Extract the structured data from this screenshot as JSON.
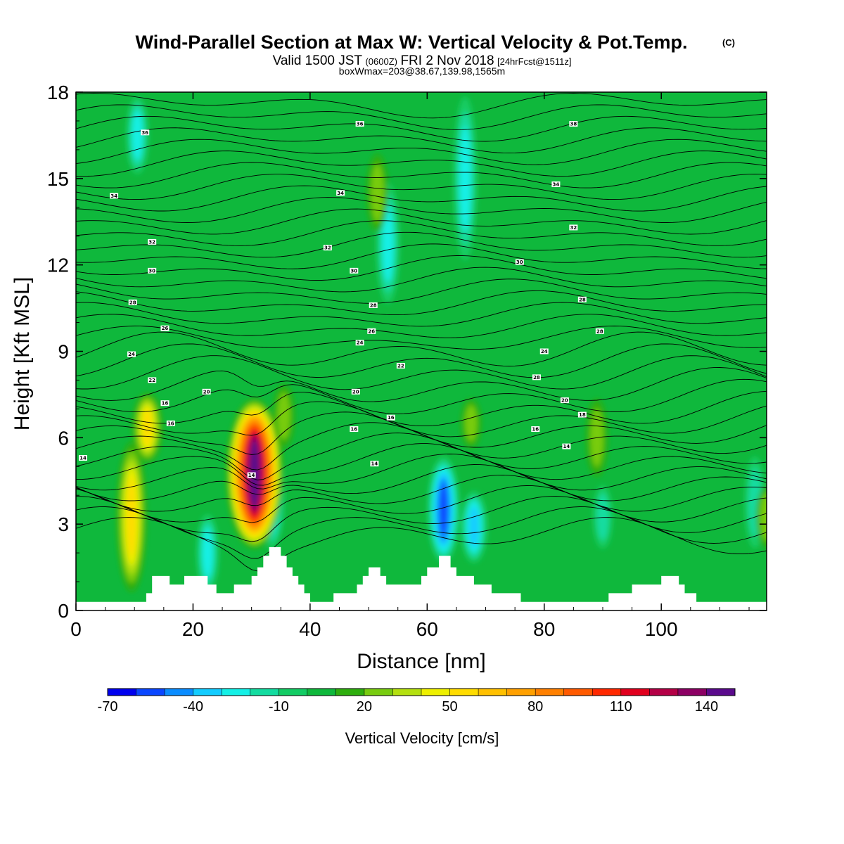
{
  "title": {
    "main": "Wind-Parallel Section at Max W: Vertical Velocity & Pot.Temp.",
    "copyright": "(C)",
    "valid_prefix": "Valid 1500 JST",
    "valid_z": "(0600Z)",
    "valid_date": "FRI 2 Nov 2018",
    "forecast": "[24hrFcst@1511z]",
    "box_info": "boxWmax=203@38.67,139.98,1565m"
  },
  "chart_data": {
    "type": "heatmap",
    "title": "Wind-Parallel Section at Max W: Vertical Velocity & Pot.Temp.",
    "xlabel": "Distance [nm]",
    "ylabel": "Height [Kft MSL]",
    "xlim": [
      0,
      118
    ],
    "ylim": [
      0,
      18
    ],
    "x_ticks": [
      0,
      20,
      40,
      60,
      80,
      100
    ],
    "y_ticks": [
      0,
      3,
      6,
      9,
      12,
      15,
      18
    ],
    "colorbar": {
      "title": "Vertical Velocity [cm/s]",
      "levels": [
        -70,
        -60,
        -50,
        -40,
        -30,
        -20,
        -10,
        0,
        10,
        20,
        30,
        40,
        50,
        60,
        70,
        80,
        90,
        100,
        110,
        120,
        130,
        140,
        150
      ],
      "tick_labels": [
        "-70",
        "-40",
        "-10",
        "20",
        "50",
        "80",
        "110",
        "140"
      ],
      "colors": [
        "#0000ee",
        "#0a46ff",
        "#0a8cff",
        "#13ccff",
        "#14f0e6",
        "#13dca0",
        "#12cc64",
        "#0fb83c",
        "#2eae0e",
        "#78cc10",
        "#b4e010",
        "#eef000",
        "#ffdc00",
        "#ffc000",
        "#ffa000",
        "#ff8000",
        "#ff5a00",
        "#ff2800",
        "#e1001e",
        "#b40046",
        "#8c0064",
        "#5a0a8c"
      ]
    },
    "background_value": 0,
    "updraft_cores": [
      {
        "x": 9.5,
        "ymin": 1.0,
        "ymax": 5.5,
        "w": 55
      },
      {
        "x": 12.2,
        "ymin": 5.5,
        "ymax": 7.2,
        "w": 55
      },
      {
        "x": 30.5,
        "ymin": 2.5,
        "ymax": 7.0,
        "w": 150
      },
      {
        "x": 35.5,
        "ymin": 6.0,
        "ymax": 7.5,
        "w": 25
      },
      {
        "x": 51.5,
        "ymin": 13.5,
        "ymax": 15.5,
        "w": 25
      },
      {
        "x": 67.5,
        "ymin": 6.0,
        "ymax": 7.0,
        "w": 20
      },
      {
        "x": 89.0,
        "ymin": 5.0,
        "ymax": 7.0,
        "w": 25
      },
      {
        "x": 118.0,
        "ymin": 2.5,
        "ymax": 4.0,
        "w": 25
      }
    ],
    "downdraft_cores": [
      {
        "x": 33.5,
        "ymin": 2.5,
        "ymax": 5.5,
        "w": -40
      },
      {
        "x": 62.8,
        "ymin": 2.0,
        "ymax": 5.0,
        "w": -65
      },
      {
        "x": 68.0,
        "ymin": 2.0,
        "ymax": 3.8,
        "w": -45
      },
      {
        "x": 66.5,
        "ymin": 12.5,
        "ymax": 17.5,
        "w": -35
      },
      {
        "x": 53.3,
        "ymin": 11.0,
        "ymax": 14.5,
        "w": -35
      },
      {
        "x": 10.5,
        "ymin": 15.5,
        "ymax": 17.5,
        "w": -30
      },
      {
        "x": 22.5,
        "ymin": 1.0,
        "ymax": 3.0,
        "w": -30
      },
      {
        "x": 90.0,
        "ymin": 2.5,
        "ymax": 4.0,
        "w": -20
      },
      {
        "x": 116.0,
        "ymin": 2.5,
        "ymax": 5.0,
        "w": -25
      }
    ],
    "terrain": [
      [
        0,
        0.3
      ],
      [
        12,
        0.3
      ],
      [
        12,
        0.6
      ],
      [
        13,
        0.6
      ],
      [
        13,
        1.2
      ],
      [
        16,
        1.2
      ],
      [
        16,
        0.9
      ],
      [
        18.5,
        0.9
      ],
      [
        18.5,
        1.2
      ],
      [
        22.5,
        1.2
      ],
      [
        22.5,
        0.9
      ],
      [
        24,
        0.9
      ],
      [
        24,
        0.6
      ],
      [
        27,
        0.6
      ],
      [
        27,
        0.9
      ],
      [
        30,
        0.9
      ],
      [
        30,
        1.2
      ],
      [
        31,
        1.2
      ],
      [
        31,
        1.5
      ],
      [
        32,
        1.5
      ],
      [
        32,
        1.9
      ],
      [
        33,
        1.9
      ],
      [
        33,
        2.2
      ],
      [
        35,
        2.2
      ],
      [
        35,
        1.9
      ],
      [
        36,
        1.9
      ],
      [
        36,
        1.5
      ],
      [
        37,
        1.5
      ],
      [
        37,
        1.2
      ],
      [
        38,
        1.2
      ],
      [
        38,
        0.9
      ],
      [
        39,
        0.9
      ],
      [
        39,
        0.6
      ],
      [
        40,
        0.6
      ],
      [
        40,
        0.3
      ],
      [
        44,
        0.3
      ],
      [
        44,
        0.6
      ],
      [
        48,
        0.6
      ],
      [
        48,
        0.9
      ],
      [
        49,
        0.9
      ],
      [
        49,
        1.2
      ],
      [
        50,
        1.2
      ],
      [
        50,
        1.5
      ],
      [
        52,
        1.5
      ],
      [
        52,
        1.2
      ],
      [
        53,
        1.2
      ],
      [
        53,
        0.9
      ],
      [
        55,
        0.9
      ],
      [
        55,
        0.9
      ],
      [
        59,
        0.9
      ],
      [
        59,
        1.2
      ],
      [
        60,
        1.2
      ],
      [
        60,
        1.5
      ],
      [
        62,
        1.5
      ],
      [
        62,
        1.9
      ],
      [
        64,
        1.9
      ],
      [
        64,
        1.5
      ],
      [
        65,
        1.5
      ],
      [
        65,
        1.2
      ],
      [
        68,
        1.2
      ],
      [
        68,
        0.9
      ],
      [
        71,
        0.9
      ],
      [
        71,
        0.6
      ],
      [
        76,
        0.6
      ],
      [
        76,
        0.3
      ],
      [
        91,
        0.3
      ],
      [
        91,
        0.6
      ],
      [
        95,
        0.6
      ],
      [
        95,
        0.9
      ],
      [
        100,
        0.9
      ],
      [
        100,
        1.2
      ],
      [
        103,
        1.2
      ],
      [
        103,
        0.9
      ],
      [
        104,
        0.9
      ],
      [
        104,
        0.6
      ],
      [
        106,
        0.6
      ],
      [
        106,
        0.3
      ],
      [
        118,
        0.3
      ]
    ],
    "theta_contours": {
      "levels": [
        14,
        16,
        18,
        20,
        22,
        24,
        26,
        28,
        30,
        32,
        34,
        36,
        38
      ],
      "labels": [
        {
          "text": "14",
          "x": 1.2,
          "y": 5.3
        },
        {
          "text": "14",
          "x": 30.0,
          "y": 4.7
        },
        {
          "text": "14",
          "x": 51.0,
          "y": 5.1
        },
        {
          "text": "14",
          "x": 83.8,
          "y": 5.7
        },
        {
          "text": "16",
          "x": 15.2,
          "y": 7.2
        },
        {
          "text": "16",
          "x": 16.2,
          "y": 6.5
        },
        {
          "text": "16",
          "x": 47.5,
          "y": 6.3
        },
        {
          "text": "16",
          "x": 53.8,
          "y": 6.7
        },
        {
          "text": "16",
          "x": 78.5,
          "y": 6.3
        },
        {
          "text": "18",
          "x": 86.5,
          "y": 6.8
        },
        {
          "text": "20",
          "x": 22.3,
          "y": 7.6
        },
        {
          "text": "20",
          "x": 47.8,
          "y": 7.6
        },
        {
          "text": "20",
          "x": 83.5,
          "y": 7.3
        },
        {
          "text": "22",
          "x": 13.0,
          "y": 8.0
        },
        {
          "text": "22",
          "x": 55.5,
          "y": 8.5
        },
        {
          "text": "24",
          "x": 9.5,
          "y": 8.9
        },
        {
          "text": "24",
          "x": 48.5,
          "y": 9.3
        },
        {
          "text": "24",
          "x": 80.0,
          "y": 9.0
        },
        {
          "text": "26",
          "x": 15.2,
          "y": 9.8
        },
        {
          "text": "26",
          "x": 50.5,
          "y": 9.7
        },
        {
          "text": "28",
          "x": 9.7,
          "y": 10.7
        },
        {
          "text": "28",
          "x": 50.8,
          "y": 10.6
        },
        {
          "text": "28",
          "x": 78.7,
          "y": 8.1
        },
        {
          "text": "28",
          "x": 86.5,
          "y": 10.8
        },
        {
          "text": "28",
          "x": 89.5,
          "y": 9.7
        },
        {
          "text": "30",
          "x": 13.0,
          "y": 11.8
        },
        {
          "text": "30",
          "x": 47.5,
          "y": 11.8
        },
        {
          "text": "30",
          "x": 75.8,
          "y": 12.1
        },
        {
          "text": "32",
          "x": 13.0,
          "y": 12.8
        },
        {
          "text": "32",
          "x": 43.0,
          "y": 12.6
        },
        {
          "text": "32",
          "x": 85.0,
          "y": 13.3
        },
        {
          "text": "34",
          "x": 6.5,
          "y": 14.4
        },
        {
          "text": "34",
          "x": 45.2,
          "y": 14.5
        },
        {
          "text": "34",
          "x": 82.0,
          "y": 14.8
        },
        {
          "text": "36",
          "x": 11.8,
          "y": 16.6
        },
        {
          "text": "36",
          "x": 48.5,
          "y": 16.9
        },
        {
          "text": "38",
          "x": 85.0,
          "y": 16.9
        }
      ]
    }
  }
}
